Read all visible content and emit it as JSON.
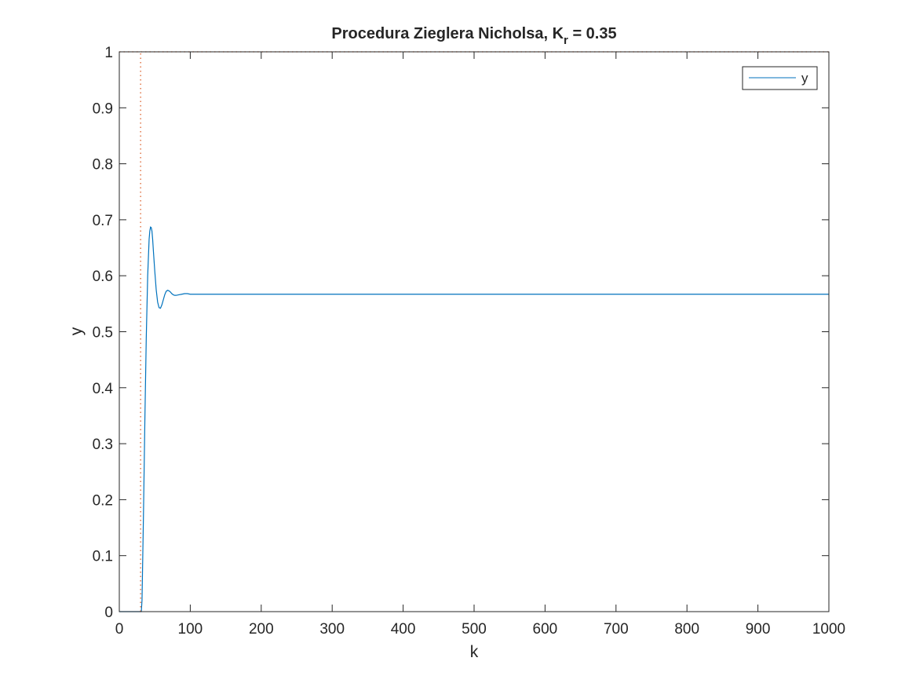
{
  "chart_data": {
    "type": "line",
    "title": "Procedura Zieglera Nicholsa, K",
    "title_subscript": "r",
    "title_suffix": " =  0.35",
    "xlabel": "k",
    "ylabel": "y",
    "xlim": [
      0,
      1000
    ],
    "ylim": [
      0,
      1
    ],
    "xticks": [
      0,
      100,
      200,
      300,
      400,
      500,
      600,
      700,
      800,
      900,
      1000
    ],
    "yticks": [
      0,
      0.1,
      0.2,
      0.3,
      0.4,
      0.5,
      0.6,
      0.7,
      0.8,
      0.9,
      1
    ],
    "xtick_labels": [
      "0",
      "100",
      "200",
      "300",
      "400",
      "500",
      "600",
      "700",
      "800",
      "900",
      "1000"
    ],
    "ytick_labels": [
      "0",
      "0.1",
      "0.2",
      "0.3",
      "0.4",
      "0.5",
      "0.6",
      "0.7",
      "0.8",
      "0.9",
      "1"
    ],
    "grid": false,
    "legend_position": "top-right",
    "series": [
      {
        "name": "y",
        "color": "#0072bd",
        "style": "solid",
        "x": [
          0,
          30,
          31,
          32,
          34,
          36,
          38,
          40,
          42,
          43,
          44,
          45,
          46,
          47,
          48,
          50,
          52,
          54,
          56,
          58,
          60,
          62,
          64,
          66,
          68,
          70,
          72,
          74,
          76,
          78,
          80,
          84,
          88,
          92,
          96,
          100,
          110,
          120,
          140,
          200,
          400,
          600,
          800,
          1000
        ],
        "y": [
          0,
          0,
          0,
          0.02,
          0.17,
          0.34,
          0.49,
          0.6,
          0.665,
          0.68,
          0.687,
          0.686,
          0.68,
          0.665,
          0.645,
          0.608,
          0.575,
          0.553,
          0.543,
          0.542,
          0.548,
          0.557,
          0.566,
          0.572,
          0.574,
          0.573,
          0.571,
          0.568,
          0.566,
          0.565,
          0.565,
          0.566,
          0.567,
          0.568,
          0.568,
          0.567,
          0.567,
          0.567,
          0.567,
          0.567,
          0.567,
          0.567,
          0.567,
          0.567
        ]
      },
      {
        "color": "#d95319",
        "style": "dotted",
        "x": [
          30,
          30
        ],
        "y": [
          0,
          1
        ]
      },
      {
        "color": "#d95319",
        "style": "dotted",
        "x": [
          0,
          1000
        ],
        "y": [
          1,
          1
        ]
      }
    ]
  }
}
